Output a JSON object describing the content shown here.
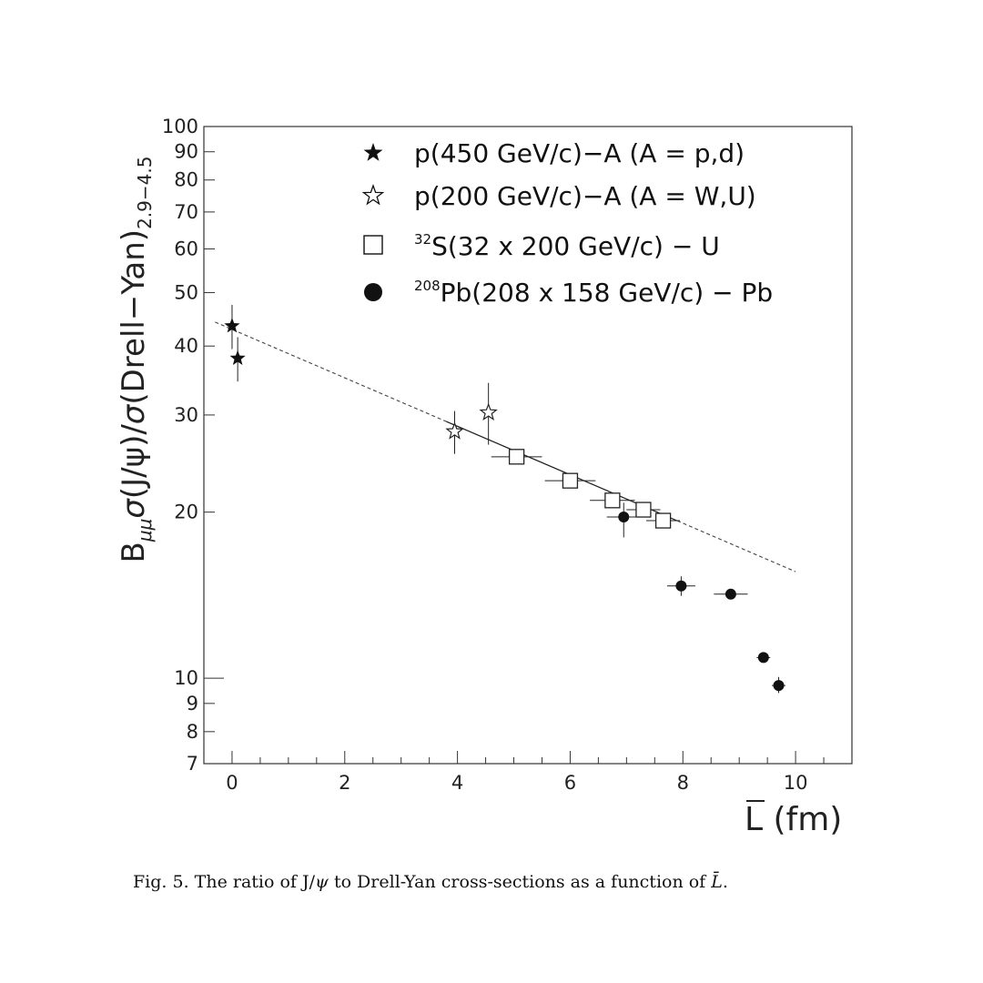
{
  "caption": {
    "text_prefix": "Fig. 5. The ratio of J/",
    "psi": "ψ",
    "text_mid": " to Drell-Yan cross-sections as a function of ",
    "lbar": "L̄",
    "text_end": "."
  },
  "chart_data": {
    "type": "scatter",
    "title": "",
    "xlabel": {
      "symbol": "L",
      "unit": " (fm)"
    },
    "ylabel": {
      "b": "B",
      "b_sub": "μμ",
      "sigma": "σ",
      "num": "(J/ψ)/",
      "den": "(Drell−Yan)",
      "den_sub": "2.9−4.5"
    },
    "xlim": [
      -0.5,
      11
    ],
    "ylim": [
      7,
      100
    ],
    "y_scale": "log",
    "x_ticks": [
      "0",
      "2",
      "4",
      "6",
      "8",
      "10"
    ],
    "y_tick_labels": [
      "7",
      "8",
      "9",
      "10",
      "20",
      "30",
      "40",
      "50",
      "60",
      "70",
      "80",
      "90",
      "100"
    ],
    "grid": false,
    "legend_position": "top-right",
    "series": [
      {
        "name": "p(450 GeV/c)−A (A = p,d)",
        "marker": "filled-star",
        "points": [
          {
            "x": 0.0,
            "y": 43.5,
            "y_err_low": 4.0,
            "y_err_high": 4.0
          },
          {
            "x": 0.1,
            "y": 38.0,
            "y_err_low": 3.5,
            "y_err_high": 3.5
          }
        ]
      },
      {
        "name": "p(200 GeV/c)−A (A = W,U)",
        "marker": "open-star",
        "points": [
          {
            "x": 3.95,
            "y": 28.0,
            "y_err_low": 2.5,
            "y_err_high": 2.5
          },
          {
            "x": 4.55,
            "y": 30.3,
            "y_err_low": 3.8,
            "y_err_high": 4.0
          }
        ]
      },
      {
        "name_sup": "32",
        "name": "S(32 x 200 GeV/c) − U",
        "marker": "open-square",
        "points": [
          {
            "x": 5.05,
            "y": 25.2,
            "x_err": 0.45
          },
          {
            "x": 6.0,
            "y": 22.8,
            "x_err": 0.45
          },
          {
            "x": 6.75,
            "y": 21.0,
            "x_err": 0.4
          },
          {
            "x": 7.3,
            "y": 20.2,
            "x_err": 0.3
          },
          {
            "x": 7.65,
            "y": 19.3,
            "x_err": 0.3
          }
        ]
      },
      {
        "name_sup": "208",
        "name": "Pb(208 x 158 GeV/c) − Pb",
        "marker": "filled-circle",
        "points": [
          {
            "x": 6.95,
            "y": 19.6,
            "x_err": 0.3,
            "y_err_low": 1.6,
            "y_err_high": 1.2
          },
          {
            "x": 7.97,
            "y": 14.7,
            "x_err": 0.25,
            "y_err_low": 0.6,
            "y_err_high": 0.6
          },
          {
            "x": 8.85,
            "y": 14.2,
            "x_err": 0.3,
            "y_err_low": 0.3,
            "y_err_high": 0.3
          },
          {
            "x": 9.43,
            "y": 10.9,
            "x_err": 0.12,
            "y_err_low": 0.2,
            "y_err_high": 0.2
          },
          {
            "x": 9.7,
            "y": 9.7,
            "x_err": 0.12,
            "y_err_low": 0.3,
            "y_err_high": 0.35
          }
        ]
      }
    ],
    "fit_line": {
      "x": [
        -0.3,
        10.0
      ],
      "y": [
        44.2,
        15.6
      ],
      "style": "solid-then-dashed"
    }
  }
}
